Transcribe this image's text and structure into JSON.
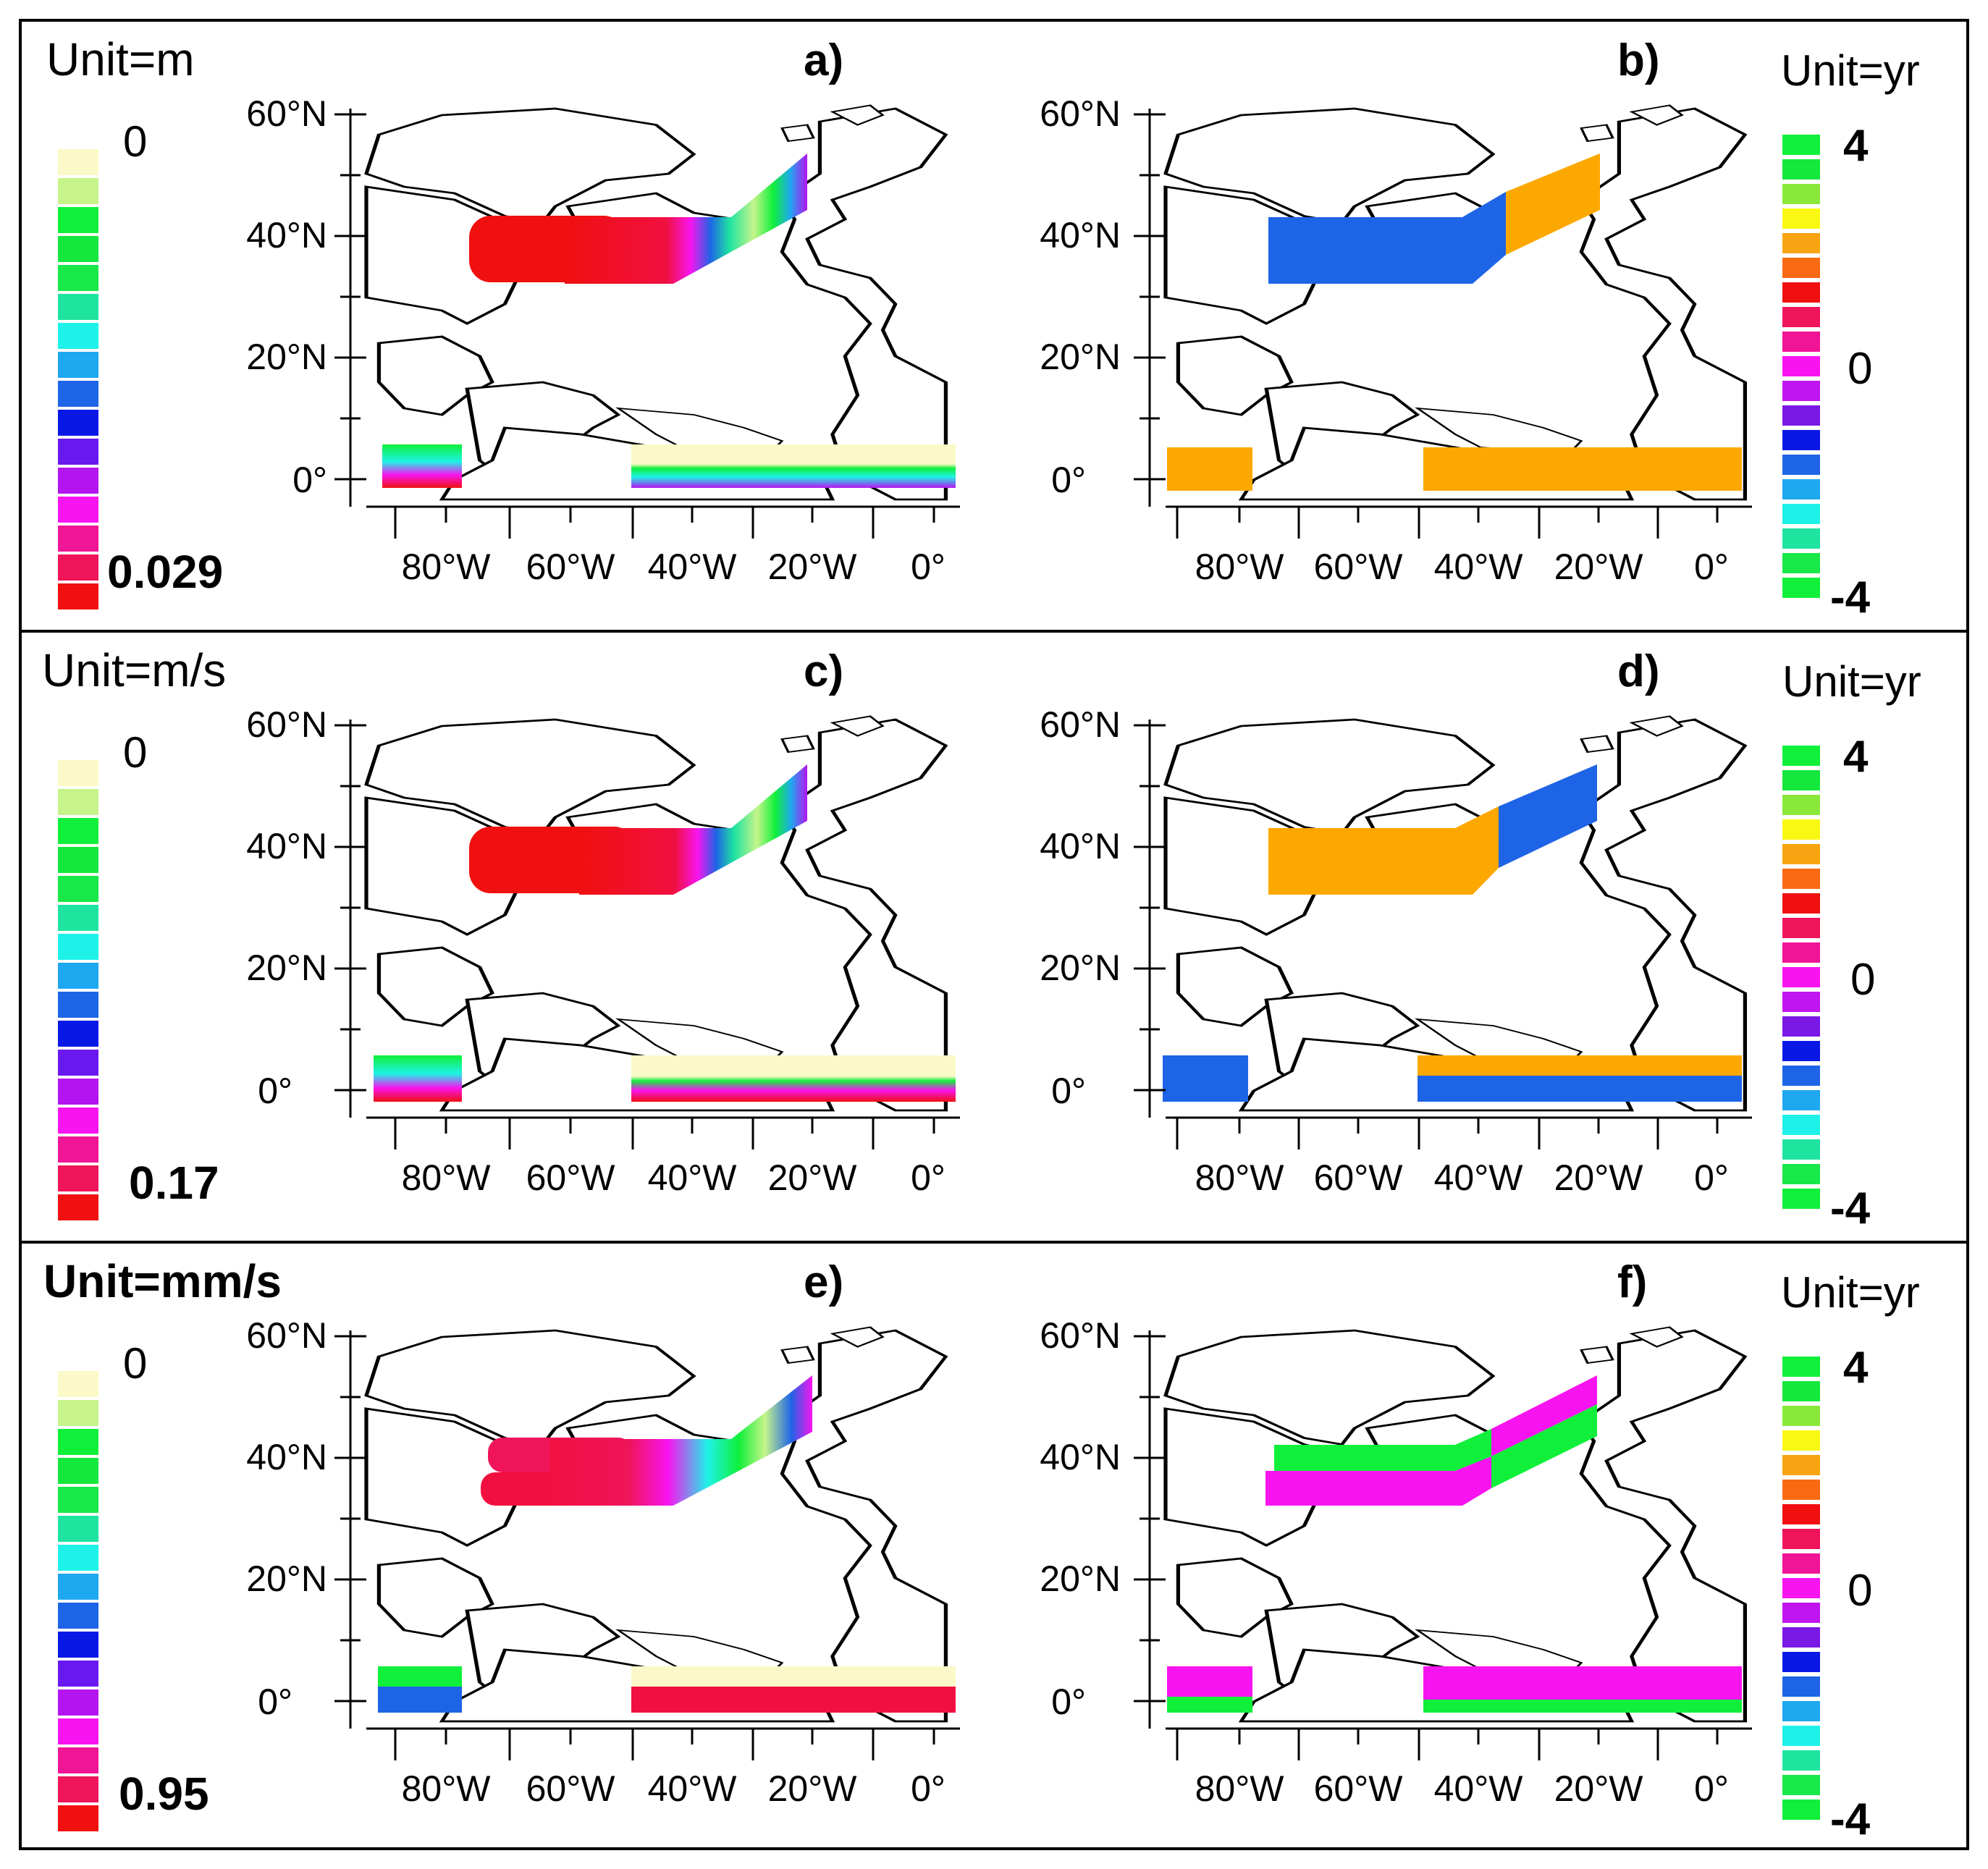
{
  "figure": {
    "rows": [
      {
        "left": {
          "label": "a)",
          "unit": "Unit=m",
          "scale_top": "0",
          "scale_bottom": "0.029"
        },
        "right": {
          "label": "b)",
          "unit": "Unit=yr",
          "scale_top": "4",
          "scale_mid": "0",
          "scale_bottom": "-4"
        }
      },
      {
        "left": {
          "label": "c)",
          "unit": "Unit=m/s",
          "scale_top": "0",
          "scale_bottom": "0.17"
        },
        "right": {
          "label": "d)",
          "unit": "Unit=yr",
          "scale_top": "4",
          "scale_mid": "0",
          "scale_bottom": "-4"
        }
      },
      {
        "left": {
          "label": "e)",
          "unit": "Unit=mm/s",
          "scale_top": "0",
          "scale_bottom": "0.95"
        },
        "right": {
          "label": "f)",
          "unit": "Unit=yr",
          "scale_top": "4",
          "scale_mid": "0",
          "scale_bottom": "-4"
        }
      }
    ],
    "lat_ticks": [
      "60°N",
      "40°N",
      "20°N",
      "0°"
    ],
    "lon_ticks": [
      "80°W",
      "60°W",
      "40°W",
      "20°W",
      "0°"
    ],
    "colors": {
      "amp_scale": [
        "#fbf9c8",
        "#c6f48a",
        "#10f03a",
        "#14e83c",
        "#18e848",
        "#1ee4a0",
        "#1ef2e8",
        "#1ea8f0",
        "#1e64e6",
        "#0a18e6",
        "#6a18f0",
        "#b414f0",
        "#f814f0",
        "#f01496",
        "#f0145a",
        "#f01010"
      ],
      "lag_scale": [
        "#10f03a",
        "#14e83c",
        "#8ae83a",
        "#f8f812",
        "#f8a412",
        "#f86a12",
        "#f01010",
        "#f0145a",
        "#f01496",
        "#f814f0",
        "#c014f0",
        "#7a18e6",
        "#0a18e6",
        "#1e64e6",
        "#1ea8f0",
        "#1ef2e8",
        "#1ee4a0",
        "#18e848",
        "#10f03a"
      ],
      "orange": "#fca800",
      "blue": "#1e64e6",
      "red": "#f01010",
      "pink": "#f814f0",
      "green": "#10f03a",
      "cream": "#fbf9c8"
    }
  }
}
